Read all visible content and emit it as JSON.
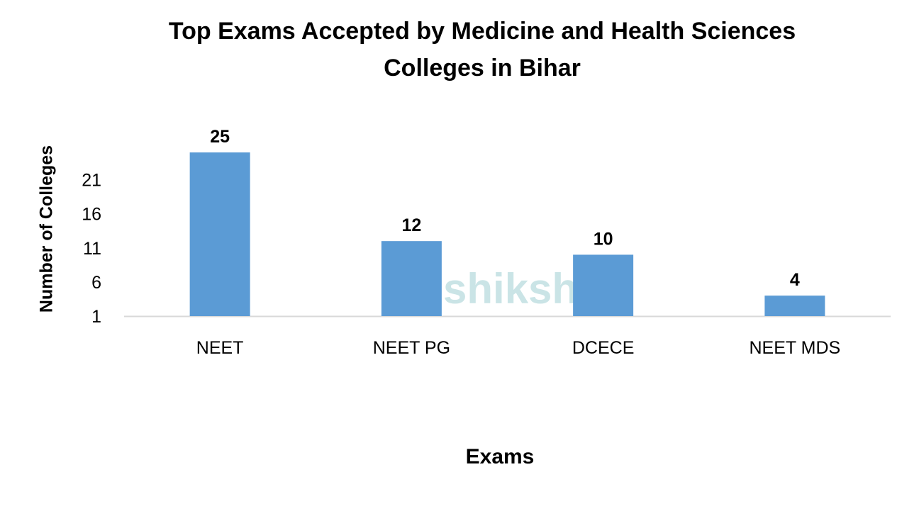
{
  "chart_data": {
    "type": "bar",
    "title": "Top Exams Accepted by Medicine and Health Sciences Colleges in Bihar",
    "title_lines": [
      "Top Exams Accepted by Medicine and Health Sciences",
      "Colleges in Bihar"
    ],
    "xlabel": "Exams",
    "ylabel": "Number of Colleges",
    "categories": [
      "NEET",
      "NEET PG",
      "DCECE",
      "NEET MDS"
    ],
    "values": [
      25,
      12,
      10,
      4
    ],
    "yticks": [
      1,
      6,
      11,
      16,
      21
    ],
    "ylim": [
      1,
      27
    ],
    "grid": false,
    "legend": "none",
    "bar_color": "#5b9bd5",
    "data_labels": true
  },
  "watermark": "shiksha"
}
